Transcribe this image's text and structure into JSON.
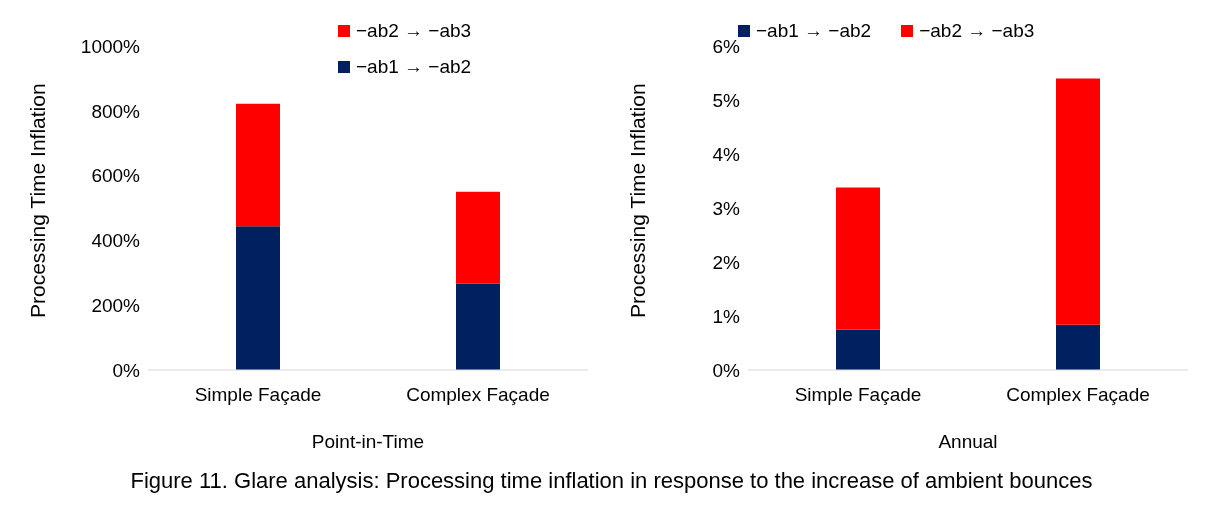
{
  "chart_data": [
    {
      "type": "bar",
      "stacked": true,
      "xlabel": "Point-in-Time",
      "ylabel": "Processing Time Inflation",
      "categories": [
        "Simple Façade",
        "Complex Façade"
      ],
      "series": [
        {
          "name": "−ab1 → −ab2",
          "color": "#002060",
          "values": [
            444,
            266
          ]
        },
        {
          "name": "−ab2 → −ab3",
          "color": "#ff0000",
          "values": [
            378,
            284
          ]
        }
      ],
      "ylim": [
        0,
        1000
      ],
      "yticks": [
        {
          "value": 0,
          "label": "0%"
        },
        {
          "value": 200,
          "label": "200%"
        },
        {
          "value": 400,
          "label": "400%"
        },
        {
          "value": 600,
          "label": "600%"
        },
        {
          "value": 800,
          "label": "800%"
        },
        {
          "value": 1000,
          "label": "1000%"
        }
      ],
      "legend": "top right"
    },
    {
      "type": "bar",
      "stacked": true,
      "xlabel": "Annual",
      "ylabel": "Processing Time Inflation",
      "categories": [
        "Simple Façade",
        "Complex Façade"
      ],
      "series": [
        {
          "name": "−ab1 → −ab2",
          "color": "#002060",
          "values": [
            0.75,
            0.84
          ]
        },
        {
          "name": "−ab2 → −ab3",
          "color": "#ff0000",
          "values": [
            2.63,
            4.56
          ]
        }
      ],
      "ylim": [
        0,
        6
      ],
      "yticks": [
        {
          "value": 0,
          "label": "0%"
        },
        {
          "value": 1,
          "label": "1%"
        },
        {
          "value": 2,
          "label": "2%"
        },
        {
          "value": 3,
          "label": "3%"
        },
        {
          "value": 4,
          "label": "4%"
        },
        {
          "value": 5,
          "label": "5%"
        },
        {
          "value": 6,
          "label": "6%"
        }
      ],
      "legend": "top",
      "annotations": [
        "Figure 11. Glare analysis: Processing time inflation in response to the increase of ambient bounces"
      ]
    }
  ]
}
